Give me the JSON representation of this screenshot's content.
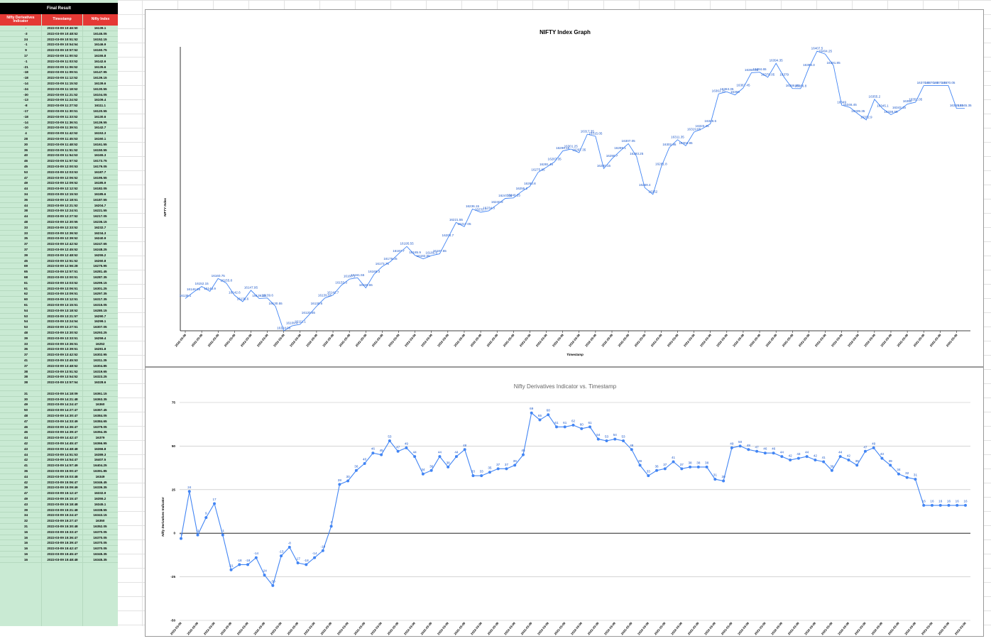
{
  "sheet": {
    "title": "Final Result",
    "headers": [
      "Nifty Derivatives Indicator",
      "Timestamp",
      "Nifty Index"
    ],
    "rows": [
      [
        "-",
        "2022-03-09 10:46:50",
        "16139.1"
      ],
      [
        "-3",
        "2022-03-09 10:48:52",
        "16146.05"
      ],
      [
        "24",
        "2022-03-09 10:51:52",
        "16152.15"
      ],
      [
        "-1",
        "2022-03-09 10:54:54",
        "16146.9"
      ],
      [
        "9",
        "2022-03-09 10:57:52",
        "16160.75"
      ],
      [
        "17",
        "2022-03-09 11:00:52",
        "16155.8"
      ],
      [
        "-1",
        "2022-03-09 11:03:52",
        "16142.6"
      ],
      [
        "-21",
        "2022-03-09 11:06:52",
        "16135.6"
      ],
      [
        "-18",
        "2022-03-09 11:09:51",
        "16147.95"
      ],
      [
        "-18",
        "2022-03-09 11:12:52",
        "16139.15"
      ],
      [
        "-14",
        "2022-03-09 11:15:52",
        "16139.6"
      ],
      [
        "-24",
        "2022-03-09 11:18:52",
        "16130.55"
      ],
      [
        "-30",
        "2022-03-09 11:21:52",
        "16104.05"
      ],
      [
        "-13",
        "2022-03-09 11:24:52",
        "16109.4"
      ],
      [
        "-8",
        "2022-03-09 11:27:52",
        "16111.1"
      ],
      [
        "-17",
        "2022-03-09 11:30:51",
        "16120.55"
      ],
      [
        "-18",
        "2022-03-09 11:33:52",
        "16130.6"
      ],
      [
        "-14",
        "2022-03-09 11:36:51",
        "16139.55"
      ],
      [
        "-10",
        "2022-03-09 11:39:51",
        "16142.7"
      ],
      [
        "4",
        "2022-03-09 11:42:52",
        "16153.3"
      ],
      [
        "28",
        "2022-03-09 11:45:53",
        "16160.1"
      ],
      [
        "30",
        "2022-03-09 11:48:52",
        "16161.55"
      ],
      [
        "36",
        "2022-03-09 11:51:52",
        "16150.55"
      ],
      [
        "40",
        "2022-03-09 11:54:53",
        "16165.3"
      ],
      [
        "46",
        "2022-03-09 11:57:52",
        "16173.75"
      ],
      [
        "45",
        "2022-03-09 12:00:53",
        "16179.05"
      ],
      [
        "53",
        "2022-03-09 12:03:53",
        "16187.7"
      ],
      [
        "47",
        "2022-03-09 12:06:52",
        "16195.55"
      ],
      [
        "49",
        "2022-03-09 12:09:52",
        "16185.9"
      ],
      [
        "44",
        "2022-03-09 12:12:52",
        "16182.05"
      ],
      [
        "34",
        "2022-03-09 12:15:53",
        "16185.6"
      ],
      [
        "36",
        "2022-03-09 12:18:51",
        "16187.55"
      ],
      [
        "44",
        "2022-03-09 12:21:52",
        "16204.7"
      ],
      [
        "38",
        "2022-03-09 12:24:51",
        "16221.55"
      ],
      [
        "44",
        "2022-03-09 12:27:52",
        "16217.05"
      ],
      [
        "48",
        "2022-03-09 12:30:55",
        "16236.15"
      ],
      [
        "33",
        "2022-03-09 12:33:52",
        "16232.7"
      ],
      [
        "33",
        "2022-03-09 12:36:52",
        "16234.3"
      ],
      [
        "35",
        "2022-03-09 12:39:52",
        "16240.9"
      ],
      [
        "37",
        "2022-03-09 12:42:52",
        "16247.65"
      ],
      [
        "37",
        "2022-03-09 12:45:52",
        "16248.25"
      ],
      [
        "39",
        "2022-03-09 12:48:52",
        "16255.2"
      ],
      [
        "45",
        "2022-03-09 12:51:52",
        "16260.8"
      ],
      [
        "69",
        "2022-03-09 12:56:28",
        "16275.95"
      ],
      [
        "65",
        "2022-03-09 12:57:51",
        "16281.45"
      ],
      [
        "68",
        "2022-03-09 13:00:51",
        "16287.35"
      ],
      [
        "61",
        "2022-03-09 13:03:52",
        "16299.15"
      ],
      [
        "61",
        "2022-03-09 13:06:51",
        "16301.25"
      ],
      [
        "62",
        "2022-03-09 13:09:51",
        "16297.35"
      ],
      [
        "60",
        "2022-03-09 13:12:51",
        "16317.35"
      ],
      [
        "61",
        "2022-03-09 13:15:51",
        "16315.05"
      ],
      [
        "54",
        "2022-03-09 13:18:52",
        "16280.15"
      ],
      [
        "53",
        "2022-03-09 13:21:57",
        "16290.7"
      ],
      [
        "54",
        "2022-03-09 13:24:54",
        "16299.1"
      ],
      [
        "53",
        "2022-03-09 13:27:51",
        "16307.05"
      ],
      [
        "48",
        "2022-03-09 13:30:52",
        "16293.25"
      ],
      [
        "39",
        "2022-03-09 13:33:51",
        "16259.4"
      ],
      [
        "33",
        "2022-03-09 13:36:51",
        "16252"
      ],
      [
        "36",
        "2022-03-09 13:39:51",
        "16281.8"
      ],
      [
        "37",
        "2022-03-09 13:42:52",
        "16302.95"
      ],
      [
        "41",
        "2022-03-09 13:45:53",
        "16311.35"
      ],
      [
        "37",
        "2022-03-09 13:48:52",
        "16304.85"
      ],
      [
        "38",
        "2022-03-09 13:51:52",
        "16319.65"
      ],
      [
        "38",
        "2022-03-09 13:54:52",
        "16323.25"
      ],
      [
        "38",
        "2022-03-09 13:57:54",
        "16328.6"
      ],
      [
        "",
        "",
        ""
      ],
      [
        "31",
        "2022-03-09 14:18:09",
        "16361.15"
      ],
      [
        "30",
        "2022-03-09 14:21:48",
        "16363.35"
      ],
      [
        "49",
        "2022-03-09 14:24:47",
        "16360"
      ],
      [
        "50",
        "2022-03-09 14:27:47",
        "16367.45"
      ],
      [
        "48",
        "2022-03-09 14:30:47",
        "16384.05"
      ],
      [
        "47",
        "2022-03-09 14:33:49",
        "16384.65"
      ],
      [
        "46",
        "2022-03-09 14:36:47",
        "16379.05"
      ],
      [
        "46",
        "2022-03-09 14:39:47",
        "16394.35"
      ],
      [
        "44",
        "2022-03-09 14:42:47",
        "16379"
      ],
      [
        "42",
        "2022-03-09 14:45:47",
        "16366.95"
      ],
      [
        "43",
        "2022-03-09 14:48:48",
        "16366.8"
      ],
      [
        "44",
        "2022-03-09 14:51:53",
        "16389.3"
      ],
      [
        "42",
        "2022-03-09 14:54:47",
        "16407.5"
      ],
      [
        "41",
        "2022-03-09 14:57:49",
        "16404.25"
      ],
      [
        "36",
        "2022-03-09 15:00:47",
        "16391.85"
      ],
      [
        "44",
        "2022-03-09 15:03:48",
        "16349"
      ],
      [
        "42",
        "2022-03-09 15:06:47",
        "16346.45"
      ],
      [
        "39",
        "2022-03-09 15:09:49",
        "16339.35"
      ],
      [
        "47",
        "2022-03-09 15:12:47",
        "16332.9"
      ],
      [
        "49",
        "2022-03-09 15:15:47",
        "16355.2"
      ],
      [
        "43",
        "2022-03-09 15:18:48",
        "16345.1"
      ],
      [
        "39",
        "2022-03-09 15:21:48",
        "16338.55"
      ],
      [
        "34",
        "2022-03-09 15:24:47",
        "16343.15"
      ],
      [
        "32",
        "2022-03-09 15:27:47",
        "16350"
      ],
      [
        "31",
        "2022-03-09 15:30:48",
        "16352.05"
      ],
      [
        "16",
        "2022-03-09 15:33:47",
        "16370.05"
      ],
      [
        "16",
        "2022-03-09 15:36:47",
        "16370.05"
      ],
      [
        "16",
        "2022-03-09 15:39:47",
        "16370.05"
      ],
      [
        "16",
        "2022-03-09 15:42:47",
        "16370.05"
      ],
      [
        "16",
        "2022-03-09 15:45:47",
        "16345.35"
      ],
      [
        "16",
        "2022-03-09 15:48:48",
        "16345.35"
      ]
    ]
  },
  "chart_data": [
    {
      "type": "line",
      "title": "NIFTY Index Graph",
      "xlabel": "Timestamp",
      "ylabel": "NIFTY Index",
      "x_tick_label": "2022-03-09",
      "grid": false,
      "ylim": [
        16104.05,
        16407.5
      ],
      "series": [
        {
          "values": [
            16139.1,
            16146.05,
            16152.15,
            16146.9,
            16160.75,
            16155.8,
            16142.6,
            16135.6,
            16147.95,
            16139.15,
            16139.6,
            16130.55,
            16104.05,
            16109.4,
            16111.1,
            16120.55,
            16130.6,
            16139.55,
            16142.7,
            16153.3,
            16160.1,
            16161.55,
            16150.55,
            16165.3,
            16173.75,
            16179.05,
            16187.7,
            16195.55,
            16185.9,
            16182.05,
            16185.6,
            16187.55,
            16204.7,
            16221.55,
            16217.05,
            16236.15,
            16232.7,
            16234.3,
            16240.9,
            16247.65,
            16248.25,
            16255.2,
            16260.8,
            16275.95,
            16281.45,
            16287.35,
            16299.15,
            16301.25,
            16297.35,
            16317.35,
            16315.05,
            16280.15,
            16290.7,
            16299.1,
            16307.05,
            16293.25,
            16259.4,
            16252,
            16281.8,
            16302.95,
            16311.35,
            16304.85,
            16319.65,
            16323.25,
            16328.6,
            16361.15,
            16363.35,
            16360,
            16367.45,
            16384.05,
            16384.65,
            16379.05,
            16394.35,
            16379,
            16366.95,
            16366.8,
            16389.3,
            16407.5,
            16404.25,
            16391.85,
            16349,
            16346.45,
            16339.35,
            16332.9,
            16355.2,
            16345.1,
            16338.55,
            16343.15,
            16350,
            16352.05,
            16370.05,
            16370.05,
            16370.05,
            16370.05,
            16345.35,
            16345.35
          ]
        }
      ]
    },
    {
      "type": "line",
      "title": "Nifty Derivatives Indicator vs. Timestamp",
      "xlabel": "",
      "ylabel": "Nifty Derivatives Indicator",
      "grid": true,
      "ylim": [
        -50,
        75
      ],
      "yticks": [
        -50,
        -25,
        0,
        25,
        50,
        75
      ],
      "series": [
        {
          "values": [
            -3,
            24,
            -1,
            9,
            17,
            -1,
            -21,
            -18,
            -18,
            -14,
            -24,
            -30,
            -13,
            -8,
            -17,
            -18,
            -14,
            -10,
            4,
            28,
            30,
            36,
            40,
            46,
            45,
            53,
            47,
            49,
            44,
            34,
            36,
            44,
            38,
            44,
            48,
            33,
            33,
            35,
            37,
            37,
            39,
            45,
            69,
            65,
            68,
            61,
            61,
            62,
            60,
            61,
            54,
            53,
            54,
            53,
            48,
            39,
            33,
            36,
            37,
            41,
            37,
            38,
            38,
            38,
            31,
            30,
            49,
            50,
            48,
            47,
            46,
            46,
            44,
            42,
            43,
            44,
            42,
            41,
            36,
            44,
            42,
            39,
            47,
            49,
            43,
            39,
            34,
            32,
            31,
            16,
            16,
            16,
            16,
            16,
            16
          ]
        }
      ]
    }
  ],
  "colors": {
    "sheet_bg": "#c9ead3",
    "header_red": "#e53935",
    "title_black": "#000000",
    "line_blue": "#4285f4",
    "label_blue": "#1a56c8"
  }
}
